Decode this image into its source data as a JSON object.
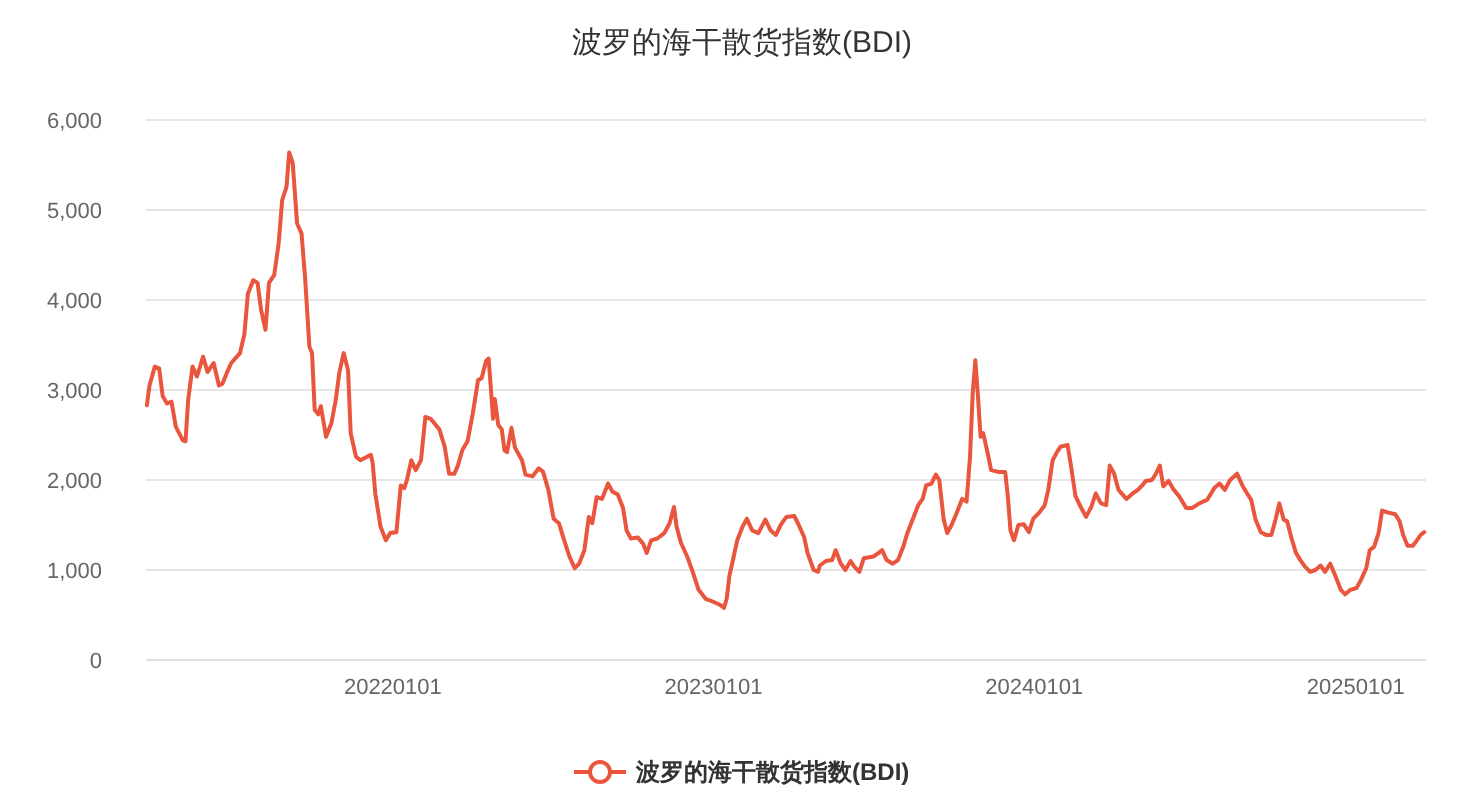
{
  "chart_data": {
    "type": "line",
    "title": "波罗的海干散货指数(BDI)",
    "x": [
      "2021-03-27",
      "2021-03-30",
      "2021-04-05",
      "2021-04-10",
      "2021-04-14",
      "2021-04-19",
      "2021-04-24",
      "2021-04-29",
      "2021-05-07",
      "2021-05-10",
      "2021-05-13",
      "2021-05-18",
      "2021-05-23",
      "2021-05-30",
      "2021-06-04",
      "2021-06-11",
      "2021-06-17",
      "2021-06-21",
      "2021-06-26",
      "2021-07-01",
      "2021-07-11",
      "2021-07-16",
      "2021-07-20",
      "2021-07-26",
      "2021-07-31",
      "2021-08-04",
      "2021-08-09",
      "2021-08-13",
      "2021-08-19",
      "2021-08-24",
      "2021-08-28",
      "2021-09-02",
      "2021-09-05",
      "2021-09-09",
      "2021-09-14",
      "2021-09-19",
      "2021-09-23",
      "2021-09-28",
      "2021-10-01",
      "2021-10-04",
      "2021-10-08",
      "2021-10-11",
      "2021-10-17",
      "2021-10-23",
      "2021-10-28",
      "2021-11-01",
      "2021-11-06",
      "2021-11-11",
      "2021-11-14",
      "2021-11-20",
      "2021-11-25",
      "2021-12-07",
      "2021-12-09",
      "2021-12-12",
      "2021-12-18",
      "2021-12-24",
      "2021-12-29",
      "2022-01-05",
      "2022-01-10",
      "2022-01-14",
      "2022-01-17",
      "2022-01-22",
      "2022-01-27",
      "2022-02-02",
      "2022-02-07",
      "2022-02-13",
      "2022-02-23",
      "2022-03-01",
      "2022-03-06",
      "2022-03-12",
      "2022-03-16",
      "2022-03-21",
      "2022-03-27",
      "2022-04-02",
      "2022-04-08",
      "2022-04-12",
      "2022-04-17",
      "2022-04-20",
      "2022-04-23",
      "2022-04-25",
      "2022-04-27",
      "2022-05-01",
      "2022-05-05",
      "2022-05-08",
      "2022-05-11",
      "2022-05-16",
      "2022-05-20",
      "2022-05-28",
      "2022-06-01",
      "2022-06-09",
      "2022-06-16",
      "2022-06-21",
      "2022-06-27",
      "2022-07-03",
      "2022-07-09",
      "2022-07-15",
      "2022-07-21",
      "2022-07-27",
      "2022-08-01",
      "2022-08-07",
      "2022-08-12",
      "2022-08-16",
      "2022-08-21",
      "2022-08-27",
      "2022-09-03",
      "2022-09-08",
      "2022-09-14",
      "2022-09-20",
      "2022-09-24",
      "2022-09-29",
      "2022-10-07",
      "2022-10-13",
      "2022-10-17",
      "2022-10-22",
      "2022-10-29",
      "2022-11-06",
      "2022-11-12",
      "2022-11-17",
      "2022-11-20",
      "2022-11-25",
      "2022-12-02",
      "2022-12-09",
      "2022-12-15",
      "2022-12-23",
      "2022-12-31",
      "2023-01-09",
      "2023-01-13",
      "2023-01-16",
      "2023-01-19",
      "2023-01-24",
      "2023-01-28",
      "2023-02-03",
      "2023-02-08",
      "2023-02-14",
      "2023-02-21",
      "2023-03-01",
      "2023-03-07",
      "2023-03-13",
      "2023-03-19",
      "2023-03-25",
      "2023-04-03",
      "2023-04-08",
      "2023-04-14",
      "2023-04-18",
      "2023-04-25",
      "2023-04-30",
      "2023-05-02",
      "2023-05-09",
      "2023-05-16",
      "2023-05-20",
      "2023-05-26",
      "2023-05-31",
      "2023-06-06",
      "2023-06-10",
      "2023-06-16",
      "2023-06-21",
      "2023-07-02",
      "2023-07-08",
      "2023-07-12",
      "2023-07-17",
      "2023-07-24",
      "2023-07-30",
      "2023-08-05",
      "2023-08-10",
      "2023-08-16",
      "2023-08-22",
      "2023-08-27",
      "2023-08-31",
      "2023-09-06",
      "2023-09-11",
      "2023-09-15",
      "2023-09-20",
      "2023-09-24",
      "2023-09-29",
      "2023-10-05",
      "2023-10-11",
      "2023-10-16",
      "2023-10-20",
      "2023-10-23",
      "2023-10-26",
      "2023-10-29",
      "2023-11-01",
      "2023-11-04",
      "2023-11-09",
      "2023-11-13",
      "2023-11-21",
      "2023-11-29",
      "2023-12-02",
      "2023-12-05",
      "2023-12-09",
      "2023-12-14",
      "2023-12-20",
      "2023-12-26",
      "2023-12-31",
      "2024-01-07",
      "2024-01-13",
      "2024-01-17",
      "2024-01-22",
      "2024-01-27",
      "2024-01-31",
      "2024-02-08",
      "2024-02-12",
      "2024-02-17",
      "2024-02-23",
      "2024-02-29",
      "2024-03-06",
      "2024-03-11",
      "2024-03-17",
      "2024-03-23",
      "2024-03-27",
      "2024-04-01",
      "2024-04-06",
      "2024-04-15",
      "2024-04-22",
      "2024-04-28",
      "2024-05-03",
      "2024-05-07",
      "2024-05-14",
      "2024-05-18",
      "2024-05-23",
      "2024-05-27",
      "2024-06-02",
      "2024-06-08",
      "2024-06-14",
      "2024-06-22",
      "2024-06-29",
      "2024-07-07",
      "2024-07-16",
      "2024-07-24",
      "2024-07-30",
      "2024-08-05",
      "2024-08-11",
      "2024-08-19",
      "2024-08-25",
      "2024-08-31",
      "2024-09-04",
      "2024-09-09",
      "2024-09-15",
      "2024-09-21",
      "2024-09-27",
      "2024-10-02",
      "2024-10-06",
      "2024-10-11",
      "2024-10-15",
      "2024-10-20",
      "2024-10-25",
      "2024-10-30",
      "2024-11-04",
      "2024-11-10",
      "2024-11-16",
      "2024-11-22",
      "2024-11-27",
      "2024-12-03",
      "2024-12-09",
      "2024-12-15",
      "2024-12-20",
      "2024-12-26",
      "2025-01-02",
      "2025-01-07",
      "2025-01-13",
      "2025-01-17",
      "2025-01-22",
      "2025-01-27",
      "2025-01-31",
      "2025-02-06",
      "2025-02-15",
      "2025-02-20",
      "2025-02-24",
      "2025-03-01",
      "2025-03-07",
      "2025-03-11",
      "2025-03-16",
      "2025-03-20"
    ],
    "series": [
      {
        "name": "波罗的海干散货指数(BDI)",
        "color": "#e9553d",
        "values": [
          2830,
          3050,
          3260,
          3240,
          2930,
          2850,
          2870,
          2590,
          2440,
          2430,
          2890,
          3260,
          3150,
          3370,
          3200,
          3300,
          3050,
          3070,
          3190,
          3300,
          3410,
          3620,
          4070,
          4220,
          4190,
          3890,
          3670,
          4190,
          4280,
          4630,
          5110,
          5260,
          5640,
          5520,
          4850,
          4740,
          4260,
          3480,
          3410,
          2780,
          2730,
          2820,
          2480,
          2630,
          2890,
          3190,
          3410,
          3220,
          2520,
          2260,
          2220,
          2280,
          2190,
          1850,
          1480,
          1330,
          1410,
          1420,
          1940,
          1910,
          2000,
          2220,
          2110,
          2220,
          2700,
          2680,
          2560,
          2370,
          2070,
          2070,
          2160,
          2330,
          2430,
          2740,
          3110,
          3130,
          3320,
          3350,
          2960,
          2680,
          2900,
          2610,
          2560,
          2330,
          2310,
          2580,
          2360,
          2220,
          2060,
          2040,
          2130,
          2090,
          1890,
          1570,
          1520,
          1330,
          1150,
          1020,
          1070,
          1220,
          1590,
          1520,
          1810,
          1790,
          1960,
          1870,
          1840,
          1690,
          1440,
          1350,
          1360,
          1290,
          1190,
          1330,
          1350,
          1410,
          1520,
          1700,
          1480,
          1300,
          1150,
          960,
          780,
          680,
          650,
          610,
          580,
          680,
          930,
          1150,
          1330,
          1480,
          1570,
          1440,
          1410,
          1560,
          1440,
          1390,
          1510,
          1590,
          1600,
          1500,
          1370,
          1190,
          1000,
          980,
          1050,
          1100,
          1110,
          1220,
          1070,
          1000,
          1100,
          1040,
          980,
          1130,
          1150,
          1190,
          1220,
          1110,
          1070,
          1110,
          1260,
          1420,
          1570,
          1720,
          1790,
          1940,
          1960,
          2060,
          2000,
          1560,
          1410,
          1500,
          1640,
          1790,
          1760,
          2260,
          2960,
          3330,
          2930,
          2480,
          2520,
          2300,
          2110,
          2090,
          2090,
          1820,
          1440,
          1330,
          1500,
          1510,
          1420,
          1570,
          1640,
          1720,
          1890,
          2220,
          2310,
          2370,
          2390,
          2150,
          1820,
          1700,
          1590,
          1700,
          1850,
          1740,
          1720,
          2160,
          2070,
          1890,
          1790,
          1850,
          1890,
          1940,
          1990,
          2000,
          2060,
          2160,
          1930,
          1990,
          1890,
          1820,
          1690,
          1690,
          1740,
          1780,
          1910,
          1960,
          1890,
          2000,
          2070,
          1940,
          1840,
          1780,
          1560,
          1420,
          1390,
          1390,
          1570,
          1740,
          1560,
          1540,
          1350,
          1190,
          1110,
          1040,
          980,
          1000,
          1050,
          980,
          1070,
          930,
          780,
          730,
          780,
          800,
          890,
          1020,
          1220,
          1260,
          1410,
          1660,
          1640,
          1620,
          1540,
          1390,
          1270,
          1270,
          1320,
          1390,
          1420
        ]
      }
    ],
    "xlim": [
      "2021-03-26",
      "2025-03-22"
    ],
    "xticks": [
      {
        "value": "2022-01-01",
        "label": "20220101"
      },
      {
        "value": "2023-01-01",
        "label": "20230101"
      },
      {
        "value": "2024-01-01",
        "label": "20240101"
      },
      {
        "value": "2025-01-01",
        "label": "20250101"
      }
    ],
    "ylim": [
      0,
      6000
    ],
    "yticks": [
      {
        "value": 0,
        "label": "0"
      },
      {
        "value": 1000,
        "label": "1,000"
      },
      {
        "value": 2000,
        "label": "2,000"
      },
      {
        "value": 3000,
        "label": "3,000"
      },
      {
        "value": 4000,
        "label": "4,000"
      },
      {
        "value": 5000,
        "label": "5,000"
      },
      {
        "value": 6000,
        "label": "6,000"
      }
    ],
    "grid": "y",
    "legend": "bottom",
    "line_style": "solid"
  }
}
